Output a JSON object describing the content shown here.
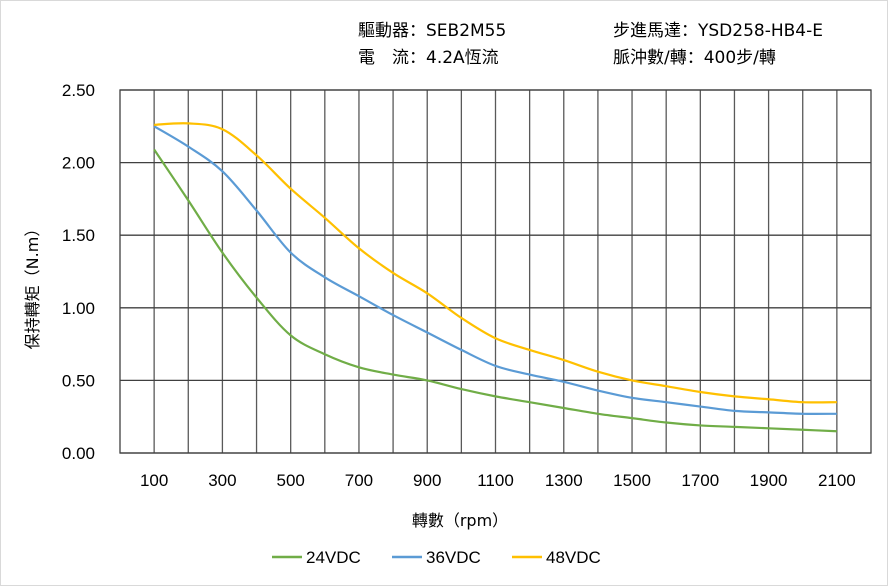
{
  "header": {
    "driver_label": "驅動器：",
    "driver_value": "SEB2M55",
    "motor_label": "步進馬達：",
    "motor_value": "YSD258-HB4-E",
    "current_label": "電　流：",
    "current_value": "4.2A恆流",
    "pulse_label": "脈沖數/轉：",
    "pulse_value": "400步/轉"
  },
  "chart_data": {
    "type": "line",
    "xlabel": "轉數（rpm）",
    "ylabel": "保持轉矩（N.m）",
    "xlim": [
      0,
      2200
    ],
    "ylim": [
      0,
      2.5
    ],
    "grid": true,
    "legend_position": "bottom",
    "x_ticks": [
      "100",
      "300",
      "500",
      "700",
      "900",
      "1100",
      "1300",
      "1500",
      "1700",
      "1900",
      "2100"
    ],
    "y_ticks": [
      "0.00",
      "0.50",
      "1.00",
      "1.50",
      "2.00",
      "2.50"
    ],
    "x": [
      100,
      200,
      300,
      400,
      500,
      600,
      700,
      800,
      900,
      1000,
      1100,
      1200,
      1300,
      1400,
      1500,
      1600,
      1700,
      1800,
      1900,
      2000,
      2100
    ],
    "series": [
      {
        "name": "24VDC",
        "color": "#70ad47",
        "values": [
          2.09,
          1.74,
          1.38,
          1.07,
          0.81,
          0.68,
          0.59,
          0.54,
          0.5,
          0.44,
          0.39,
          0.35,
          0.31,
          0.27,
          0.24,
          0.21,
          0.19,
          0.18,
          0.17,
          0.16,
          0.15
        ]
      },
      {
        "name": "36VDC",
        "color": "#5b9bd5",
        "values": [
          2.25,
          2.11,
          1.94,
          1.67,
          1.38,
          1.21,
          1.08,
          0.95,
          0.83,
          0.71,
          0.6,
          0.54,
          0.49,
          0.43,
          0.38,
          0.35,
          0.32,
          0.29,
          0.28,
          0.27,
          0.27
        ]
      },
      {
        "name": "48VDC",
        "color": "#ffc000",
        "values": [
          2.26,
          2.27,
          2.23,
          2.05,
          1.82,
          1.62,
          1.41,
          1.24,
          1.1,
          0.93,
          0.79,
          0.71,
          0.64,
          0.56,
          0.5,
          0.46,
          0.42,
          0.39,
          0.37,
          0.35,
          0.35
        ]
      }
    ]
  }
}
